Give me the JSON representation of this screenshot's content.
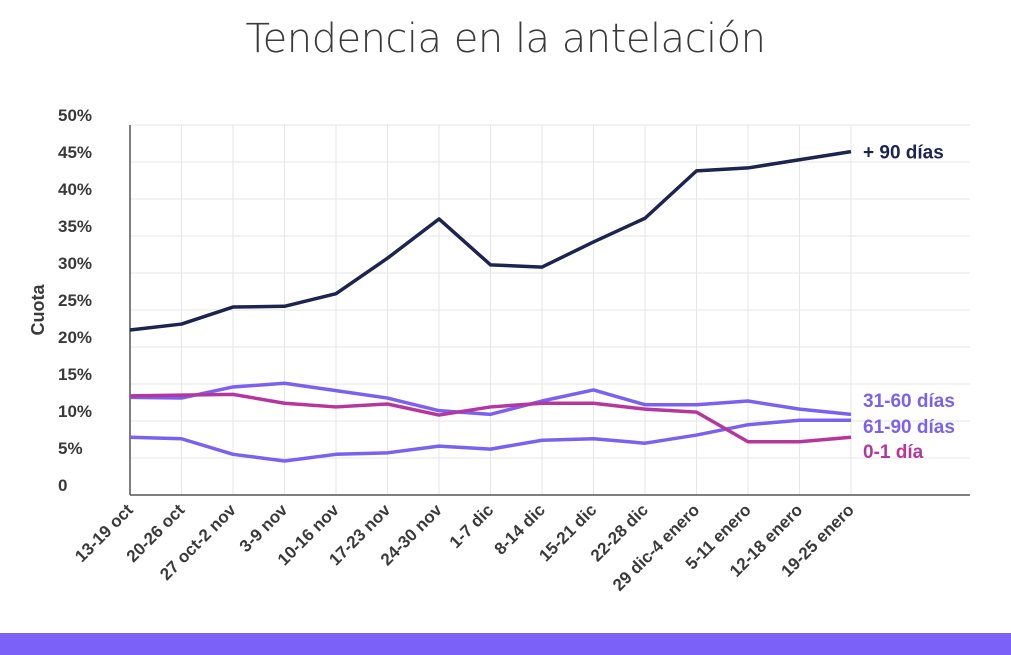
{
  "chart_data": {
    "type": "line",
    "title": "Tendencia en la antelación",
    "xlabel": "",
    "ylabel": "Cuota",
    "ylim": [
      0,
      50
    ],
    "yticks": [
      0,
      5,
      10,
      15,
      20,
      25,
      30,
      35,
      40,
      45,
      50
    ],
    "ytick_labels": [
      "0",
      "5%",
      "10%",
      "15%",
      "20%",
      "25%",
      "30%",
      "35%",
      "40%",
      "45%",
      "50%"
    ],
    "grid": true,
    "legend": "direct labels at right end of lines",
    "categories": [
      "13-19 oct",
      "20-26 oct",
      "27 oct-2 nov",
      "3-9 nov",
      "10-16 nov",
      "17-23 nov",
      "24-30 nov",
      "1-7 dic",
      "8-14 dic",
      "15-21 dic",
      "22-28 dic",
      "29 dic-4 enero",
      "5-11 enero",
      "12-18 enero",
      "19-25 enero"
    ],
    "series": [
      {
        "name": "+ 90 días",
        "color": "#1c2550",
        "values": [
          22.3,
          23.1,
          25.4,
          25.5,
          27.2,
          32.0,
          37.3,
          31.1,
          30.8,
          34.2,
          37.4,
          43.8,
          44.2,
          45.3,
          46.4
        ]
      },
      {
        "name": "31-60 días",
        "color": "#7b61f0",
        "values": [
          13.2,
          13.1,
          14.6,
          15.1,
          14.1,
          13.1,
          11.4,
          10.9,
          12.7,
          14.2,
          12.2,
          12.2,
          12.7,
          11.6,
          10.9
        ]
      },
      {
        "name": "61-90 días",
        "color": "#7b61f0",
        "values": [
          7.8,
          7.6,
          5.5,
          4.6,
          5.5,
          5.7,
          6.6,
          6.2,
          7.4,
          7.6,
          7.0,
          8.1,
          9.5,
          10.1,
          10.1
        ]
      },
      {
        "name": "0-1 día",
        "color": "#b5379e",
        "values": [
          13.4,
          13.5,
          13.6,
          12.4,
          11.9,
          12.3,
          10.8,
          11.9,
          12.4,
          12.4,
          11.6,
          11.2,
          7.2,
          7.2,
          7.8
        ]
      }
    ]
  },
  "colors": {
    "bottom_bar": "#7b61f8",
    "grid": "#e6e6e6",
    "axis": "#555555"
  }
}
